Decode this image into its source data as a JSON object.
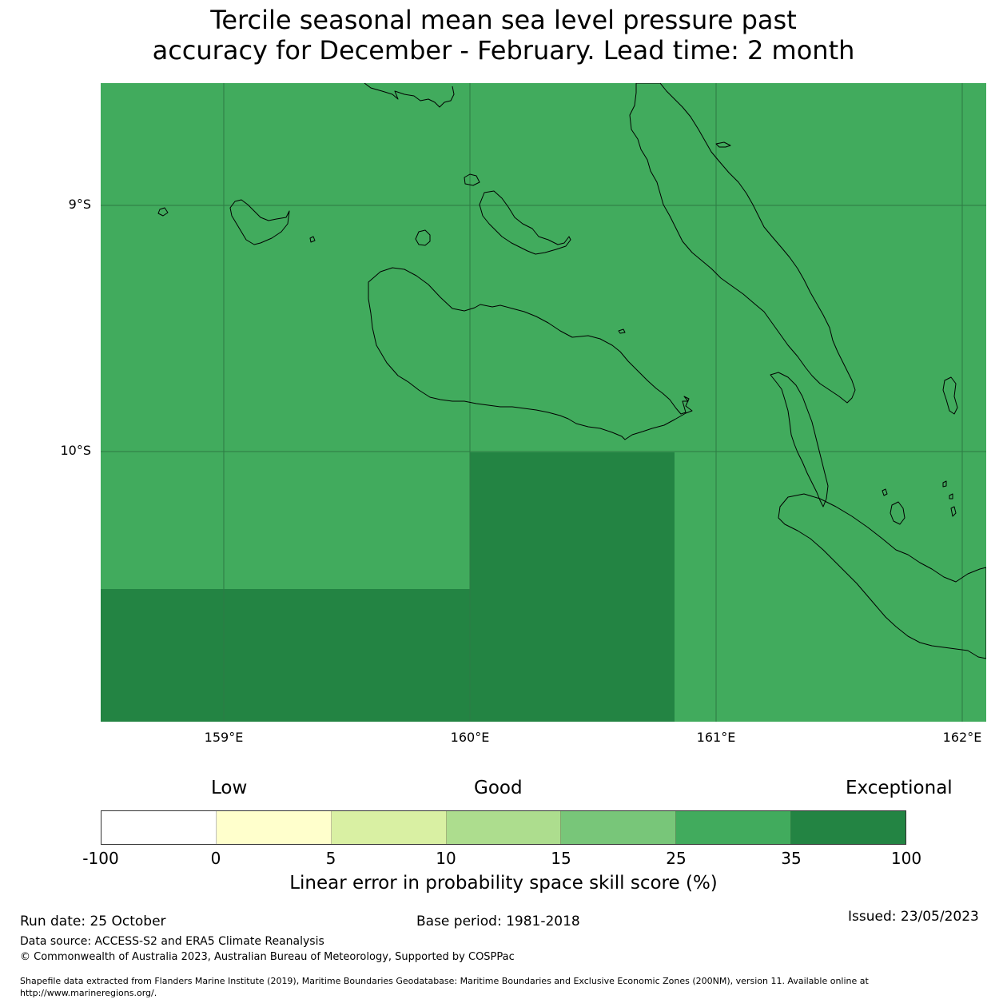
{
  "title_line1": "Tercile seasonal mean sea level pressure past",
  "title_line2": "accuracy for December - February. Lead time: 2 month",
  "map": {
    "lat_labels": [
      "9°S",
      "10°S"
    ],
    "lon_labels": [
      "159°E",
      "160°E",
      "161°E",
      "162°E"
    ],
    "colors": {
      "background_25_35": "#41ab5d",
      "cells_35_100": "#238443",
      "gridline": "#2d7a44",
      "coastline": "#000000"
    },
    "cells": [
      {
        "category": "25-35"
      },
      {
        "category": "35-100"
      },
      {
        "category": "35-100"
      }
    ]
  },
  "legend": {
    "category_labels": {
      "low": "Low",
      "good": "Good",
      "exceptional": "Exceptional"
    },
    "segments": [
      {
        "from": -100,
        "to": 0,
        "color": "#ffffff"
      },
      {
        "from": 0,
        "to": 5,
        "color": "#ffffcc"
      },
      {
        "from": 5,
        "to": 10,
        "color": "#d9f0a3"
      },
      {
        "from": 10,
        "to": 15,
        "color": "#addd8e"
      },
      {
        "from": 15,
        "to": 25,
        "color": "#78c679"
      },
      {
        "from": 25,
        "to": 35,
        "color": "#41ab5d"
      },
      {
        "from": 35,
        "to": 100,
        "color": "#238443"
      }
    ],
    "ticks": [
      "-100",
      "0",
      "5",
      "10",
      "15",
      "25",
      "35",
      "100"
    ],
    "axis_title": "Linear error in probability space skill score (%)"
  },
  "footer": {
    "run_date": "Run date: 25 October",
    "base_period": "Base period: 1981-2018",
    "issued": "Issued: 23/05/2023",
    "data_source": "Data source: ACCESS-S2 and ERA5 Climate Reanalysis",
    "copyright": "© Commonwealth of Australia 2023, Australian Bureau of Meteorology, Supported by COSPPac",
    "shapefile_line1": "Shapefile data extracted from Flanders Marine Institute (2019), Maritime Boundaries Geodatabase: Maritime Boundaries and Exclusive Economic Zones (200NM), version 11. Available online at",
    "shapefile_line2": "http://www.marineregions.org/."
  }
}
